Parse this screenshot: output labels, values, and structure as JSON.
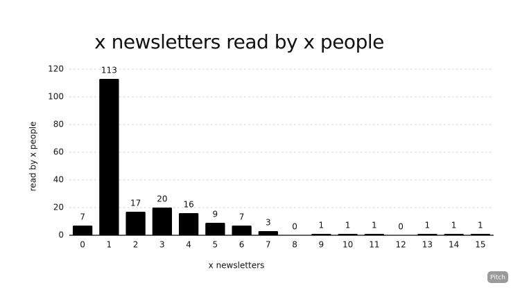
{
  "chart_data": {
    "type": "bar",
    "title": "x newsletters read by x people",
    "x_label": "x newsletters",
    "y_label": "read by x people",
    "categories": [
      "0",
      "1",
      "2",
      "3",
      "4",
      "5",
      "6",
      "7",
      "8",
      "9",
      "10",
      "11",
      "12",
      "13",
      "14",
      "15"
    ],
    "values": [
      7,
      113,
      17,
      20,
      16,
      9,
      7,
      3,
      0,
      1,
      1,
      1,
      0,
      1,
      1,
      1
    ],
    "color": "#000000",
    "ylim": [
      0,
      120
    ],
    "yticks": [
      0,
      20,
      40,
      60,
      80,
      100,
      120
    ],
    "grid": true
  },
  "badge": "Pitch"
}
